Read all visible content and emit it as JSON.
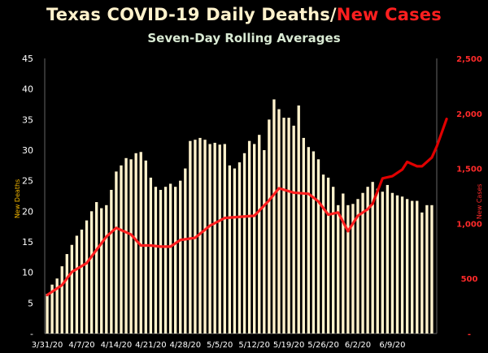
{
  "chart_data": {
    "type": "bar",
    "title_part1": "Texas COVID-19 Daily Deaths/",
    "title_part2": "New Cases",
    "subtitle": "Seven-Day Rolling Averages",
    "ylabel_left": "New Deaths",
    "ylabel_right": "New Cases",
    "ylim_left": [
      0,
      45
    ],
    "yticks_left": [
      "-",
      "5",
      "10",
      "15",
      "20",
      "25",
      "30",
      "35",
      "40",
      "45"
    ],
    "ylim_right": [
      0,
      2500
    ],
    "yticks_right": [
      "-",
      "500",
      "1,000",
      "1,500",
      "2,000",
      "2,500"
    ],
    "x_tick_labels": [
      "3/31/20",
      "4/7/20",
      "4/14/20",
      "4/21/20",
      "4/28/20",
      "5/5/20",
      "5/12/20",
      "5/19/20",
      "5/26/20",
      "6/2/20",
      "6/9/20"
    ],
    "colors": {
      "bars": "#fff2cc",
      "line_early": "#ff1f1f",
      "line_late": "#e00000",
      "left_axis_label": "#f5b800"
    },
    "series": [
      {
        "name": "New Deaths",
        "type": "bar",
        "axis": "left",
        "values": [
          6.5,
          8,
          9,
          11,
          13,
          14.5,
          16,
          17,
          18.5,
          20,
          21.5,
          20.5,
          21,
          23.5,
          26.5,
          27.5,
          28.7,
          28.5,
          29.5,
          29.7,
          28.3,
          25.5,
          24,
          23.5,
          24,
          24.5,
          24,
          25,
          27,
          31.5,
          31.7,
          32,
          31.7,
          31,
          31.2,
          30.9,
          31,
          27.5,
          27,
          28,
          29.5,
          31.5,
          31,
          32.5,
          30,
          35,
          38.3,
          36.7,
          35.3,
          35.3,
          34,
          37.3,
          32,
          30.5,
          29.8,
          28.5,
          26,
          25.5,
          24,
          21,
          22.9,
          21,
          21.2,
          22,
          23,
          24,
          24.8,
          23.7,
          23.2,
          24.3,
          23,
          22.6,
          22.4,
          22,
          21.7,
          21.7,
          19.8,
          21,
          21
        ]
      },
      {
        "name": "New Cases",
        "type": "line",
        "axis": "right",
        "x_index": [
          0,
          3,
          5,
          8,
          10,
          12,
          14,
          17,
          19,
          21,
          23,
          25,
          27,
          30,
          33,
          36,
          39,
          42,
          45,
          47,
          50,
          53,
          55,
          57,
          59,
          61,
          63,
          65,
          66,
          68,
          70,
          72,
          73,
          75,
          76,
          78,
          79,
          81
        ],
        "values": [
          350,
          440,
          560,
          640,
          760,
          880,
          960,
          900,
          800,
          800,
          790,
          790,
          850,
          870,
          980,
          1050,
          1060,
          1070,
          1210,
          1320,
          1280,
          1270,
          1200,
          1080,
          1100,
          930,
          1070,
          1130,
          1180,
          1410,
          1430,
          1490,
          1560,
          1520,
          1520,
          1600,
          1700,
          1950
        ]
      }
    ]
  }
}
